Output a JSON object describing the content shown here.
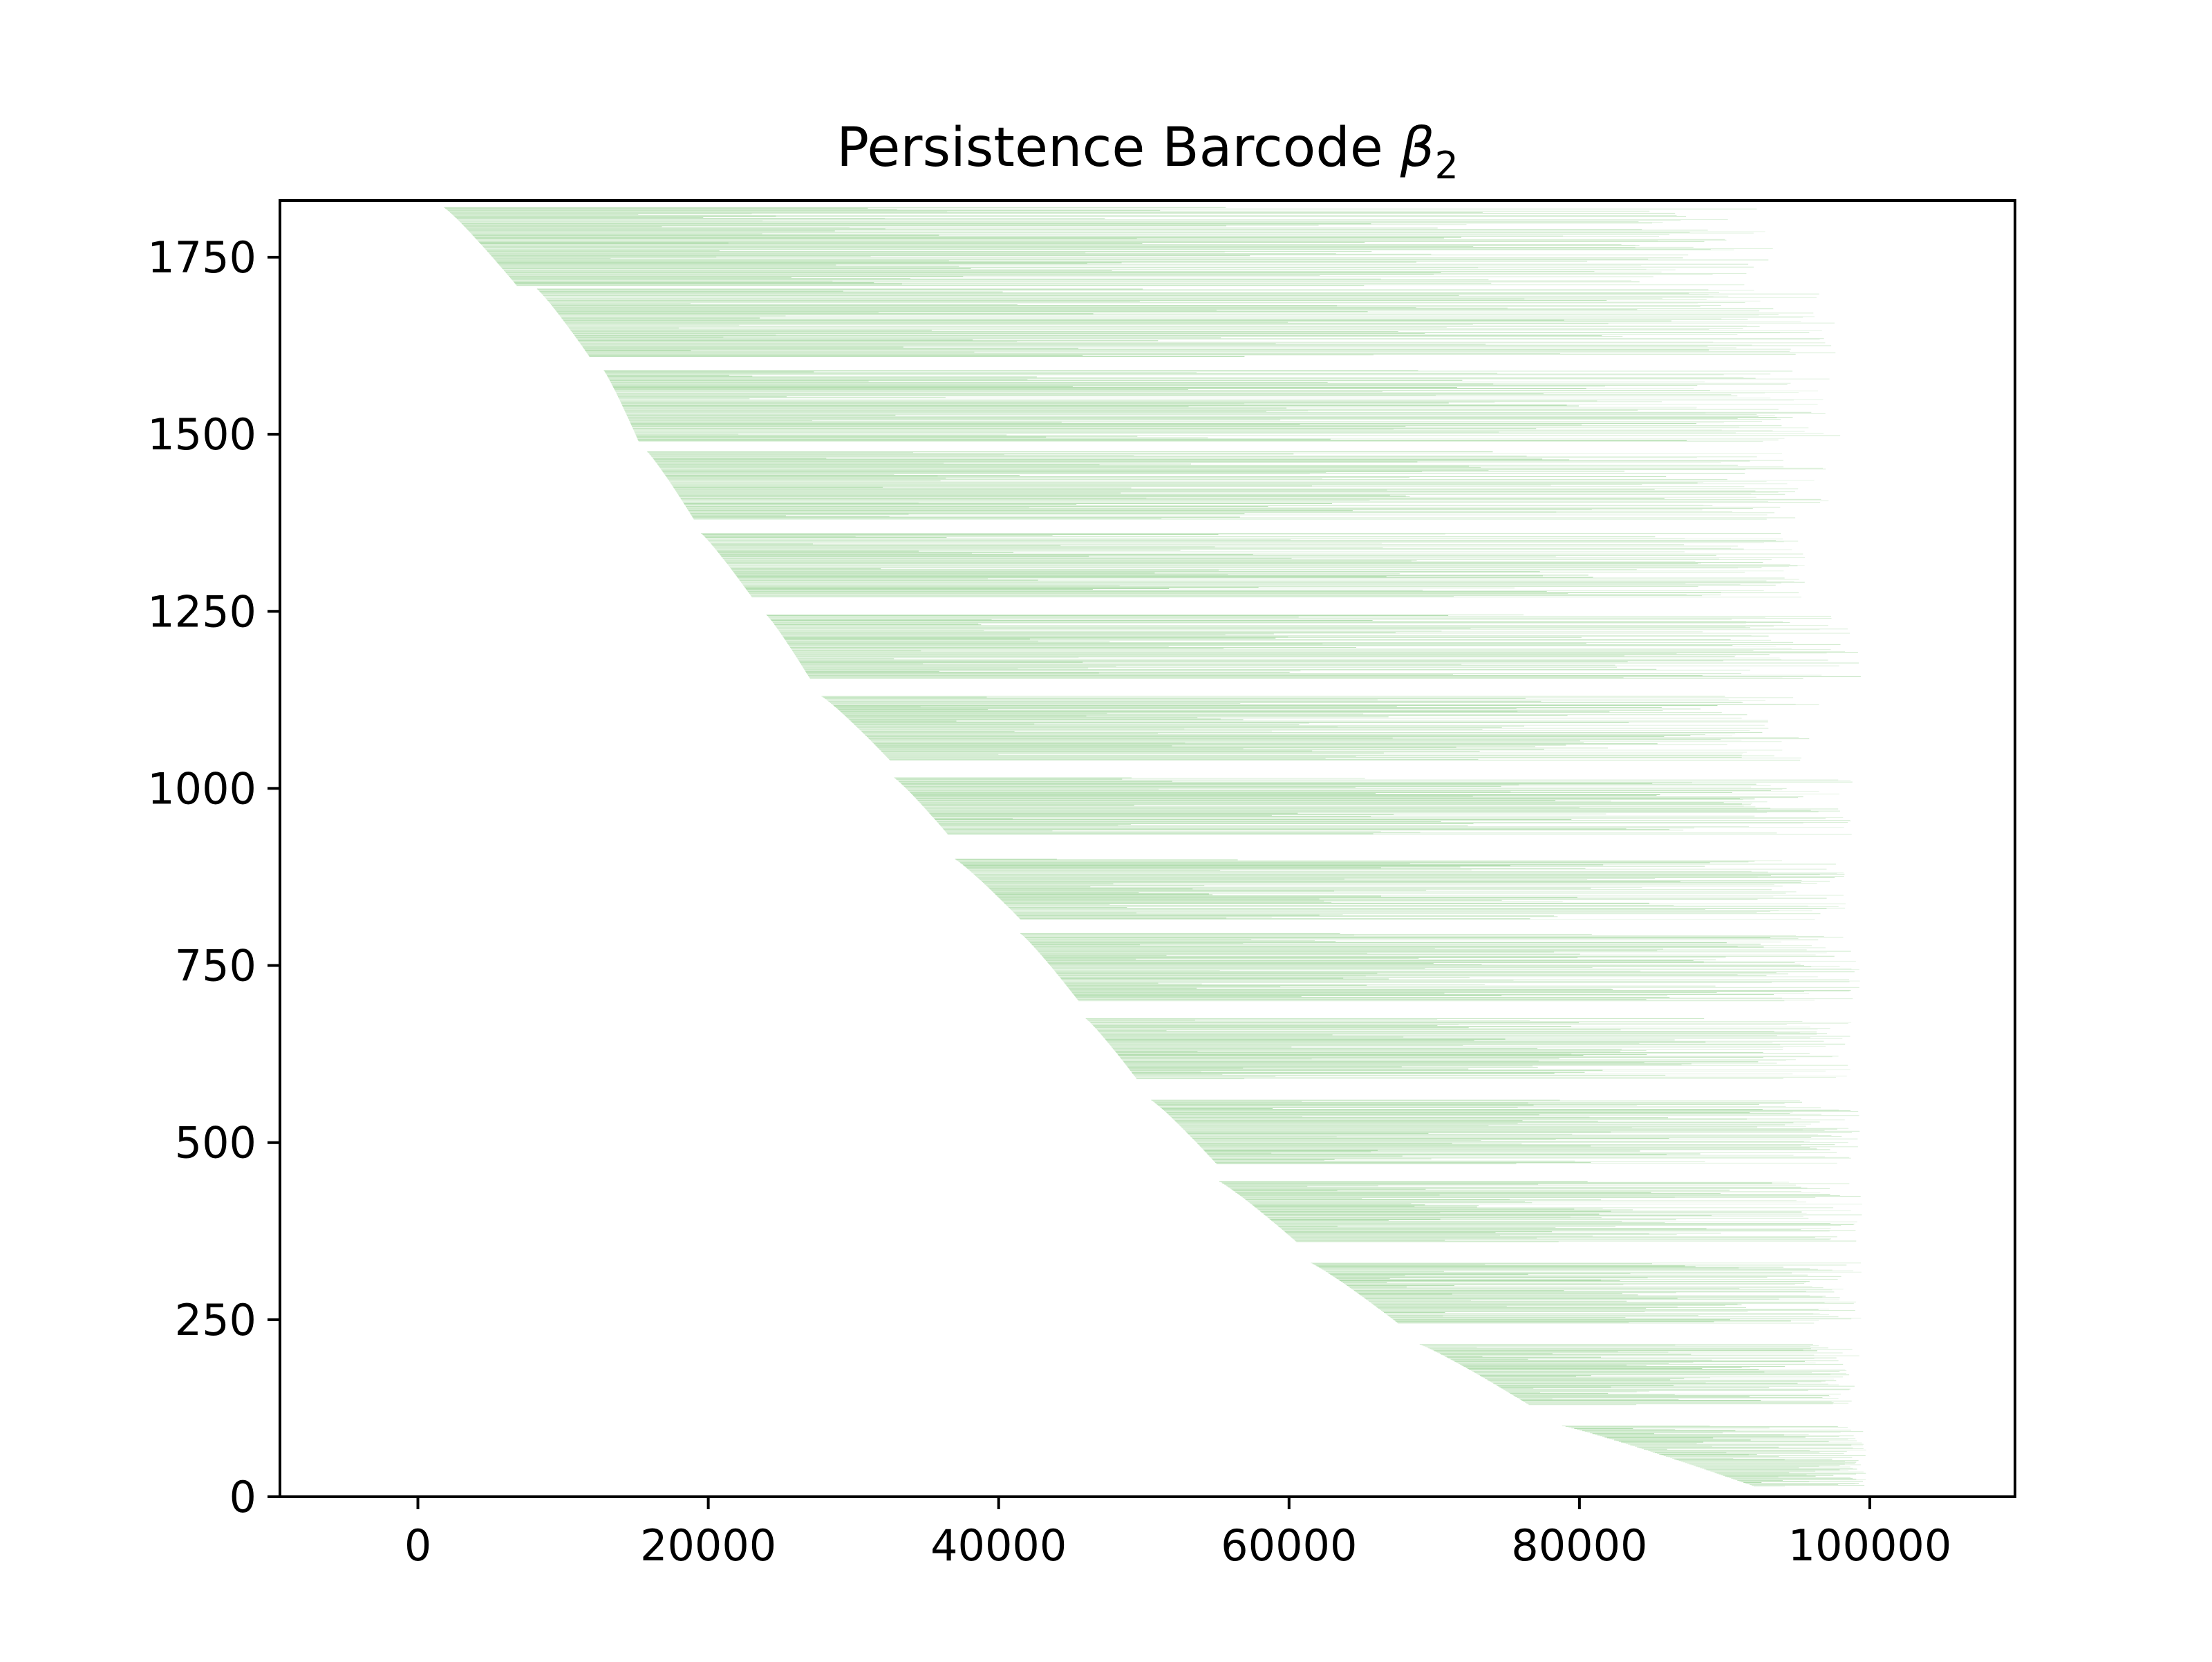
{
  "chart_data": {
    "type": "barcode",
    "title": "Persistence Barcode",
    "title_symbol": "β",
    "title_subscript": "2",
    "xlabel": "",
    "ylabel": "",
    "xlim": [
      -9500,
      110000
    ],
    "ylim": [
      0,
      1830
    ],
    "x_ticks": [
      0,
      20000,
      40000,
      60000,
      80000,
      100000
    ],
    "x_tick_labels": [
      "0",
      "20000",
      "40000",
      "60000",
      "80000",
      "100000"
    ],
    "y_ticks": [
      0,
      250,
      500,
      750,
      1000,
      1250,
      1500,
      1750
    ],
    "y_tick_labels": [
      "0",
      "250",
      "500",
      "750",
      "1000",
      "1250",
      "1500",
      "1750"
    ],
    "grid": false,
    "legend": "none",
    "bar_color": "#8fce8a",
    "bar_count": 1820,
    "groups": [
      {
        "y_top": 1820,
        "y_bottom": 1710,
        "birth_top": 1800,
        "birth_bottom": 6800,
        "death_max": 93500
      },
      {
        "y_top": 1705,
        "y_bottom": 1610,
        "birth_top": 8200,
        "birth_bottom": 11800,
        "death_max": 98000
      },
      {
        "y_top": 1590,
        "y_bottom": 1490,
        "birth_top": 12800,
        "birth_bottom": 15200,
        "death_max": 98000
      },
      {
        "y_top": 1475,
        "y_bottom": 1380,
        "birth_top": 15800,
        "birth_bottom": 19000,
        "death_max": 97500
      },
      {
        "y_top": 1360,
        "y_bottom": 1270,
        "birth_top": 19500,
        "birth_bottom": 23000,
        "death_max": 96000
      },
      {
        "y_top": 1245,
        "y_bottom": 1155,
        "birth_top": 24000,
        "birth_bottom": 27000,
        "death_max": 99500
      },
      {
        "y_top": 1130,
        "y_bottom": 1040,
        "birth_top": 27800,
        "birth_bottom": 32500,
        "death_max": 97000
      },
      {
        "y_top": 1015,
        "y_bottom": 935,
        "birth_top": 32800,
        "birth_bottom": 36500,
        "death_max": 99000
      },
      {
        "y_top": 900,
        "y_bottom": 815,
        "birth_top": 37000,
        "birth_bottom": 41500,
        "death_max": 98500
      },
      {
        "y_top": 795,
        "y_bottom": 700,
        "birth_top": 41500,
        "birth_bottom": 45500,
        "death_max": 99500
      },
      {
        "y_top": 675,
        "y_bottom": 590,
        "birth_top": 46000,
        "birth_bottom": 49500,
        "death_max": 99000
      },
      {
        "y_top": 560,
        "y_bottom": 470,
        "birth_top": 50500,
        "birth_bottom": 55000,
        "death_max": 99500
      },
      {
        "y_top": 445,
        "y_bottom": 360,
        "birth_top": 55200,
        "birth_bottom": 60500,
        "death_max": 99500
      },
      {
        "y_top": 330,
        "y_bottom": 245,
        "birth_top": 61500,
        "birth_bottom": 67500,
        "death_max": 99500
      },
      {
        "y_top": 215,
        "y_bottom": 130,
        "birth_top": 69000,
        "birth_bottom": 76500,
        "death_max": 99500
      },
      {
        "y_top": 100,
        "y_bottom": 15,
        "birth_top": 78800,
        "birth_bottom": 92000,
        "death_max": 99800
      }
    ]
  }
}
